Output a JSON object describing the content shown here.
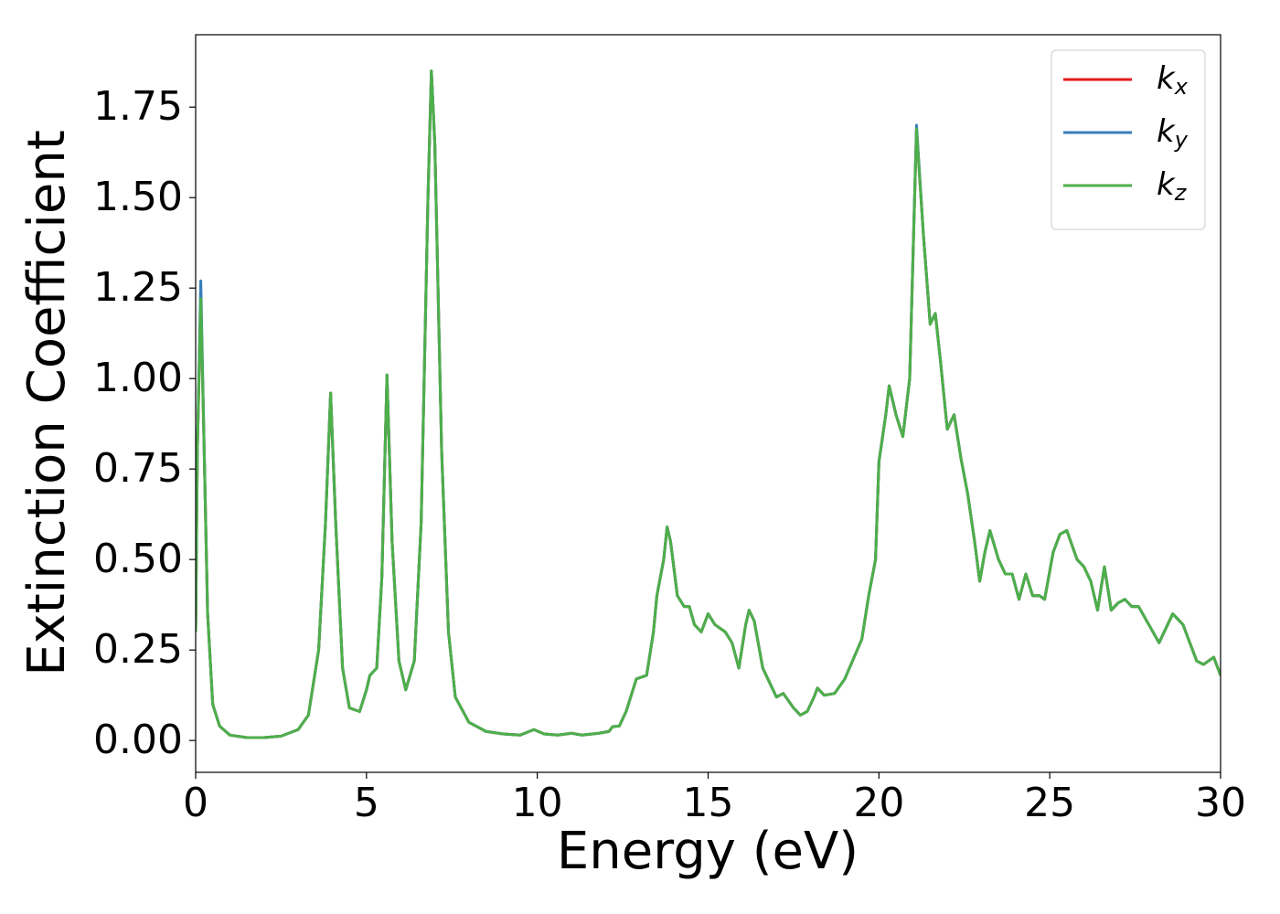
{
  "chart_data": {
    "type": "line",
    "x_label": "Energy (eV)",
    "y_label": "Extinction Coefficient",
    "x": [
      0,
      0.05,
      0.15,
      0.25,
      0.35,
      0.5,
      0.7,
      1,
      1.5,
      2,
      2.5,
      3,
      3.3,
      3.6,
      3.8,
      3.95,
      4.1,
      4.3,
      4.5,
      4.8,
      5,
      5.1,
      5.3,
      5.45,
      5.6,
      5.75,
      5.95,
      6.15,
      6.4,
      6.6,
      6.8,
      6.9,
      7,
      7.2,
      7.4,
      7.6,
      8,
      8.5,
      9,
      9.5,
      9.9,
      10.2,
      10.6,
      11,
      11.3,
      11.8,
      12.1,
      12.2,
      12.4,
      12.6,
      12.9,
      13.2,
      13.4,
      13.5,
      13.7,
      13.8,
      13.9,
      14.1,
      14.3,
      14.45,
      14.6,
      14.8,
      15,
      15.2,
      15.5,
      15.7,
      15.9,
      16.1,
      16.2,
      16.35,
      16.6,
      16.8,
      17,
      17.2,
      17.5,
      17.7,
      17.9,
      18.1,
      18.2,
      18.4,
      18.7,
      19,
      19.5,
      19.7,
      19.9,
      20,
      20.2,
      20.3,
      20.5,
      20.7,
      20.9,
      21.1,
      21.3,
      21.5,
      21.65,
      21.8,
      22,
      22.2,
      22.4,
      22.6,
      22.8,
      22.95,
      23.1,
      23.25,
      23.5,
      23.7,
      23.9,
      24.1,
      24.3,
      24.5,
      24.7,
      24.85,
      25.1,
      25.3,
      25.5,
      25.8,
      26,
      26.2,
      26.4,
      26.6,
      26.8,
      27,
      27.2,
      27.4,
      27.6,
      27.9,
      28.2,
      28.6,
      28.9,
      29.1,
      29.3,
      29.5,
      29.8,
      30
    ],
    "series": [
      {
        "name": "kx",
        "color": "#e41a1c",
        "values": [
          0.3,
          0.8,
          1.22,
          0.8,
          0.35,
          0.1,
          0.04,
          0.015,
          0.008,
          0.008,
          0.012,
          0.03,
          0.07,
          0.25,
          0.6,
          0.96,
          0.6,
          0.2,
          0.09,
          0.08,
          0.14,
          0.18,
          0.2,
          0.45,
          1.01,
          0.55,
          0.22,
          0.14,
          0.22,
          0.6,
          1.5,
          1.85,
          1.65,
          0.8,
          0.3,
          0.12,
          0.05,
          0.025,
          0.018,
          0.015,
          0.03,
          0.018,
          0.015,
          0.02,
          0.015,
          0.02,
          0.025,
          0.038,
          0.04,
          0.08,
          0.17,
          0.18,
          0.3,
          0.4,
          0.5,
          0.59,
          0.55,
          0.4,
          0.37,
          0.37,
          0.32,
          0.3,
          0.35,
          0.32,
          0.3,
          0.27,
          0.2,
          0.32,
          0.36,
          0.33,
          0.2,
          0.16,
          0.12,
          0.13,
          0.09,
          0.07,
          0.08,
          0.12,
          0.145,
          0.125,
          0.13,
          0.17,
          0.28,
          0.4,
          0.5,
          0.77,
          0.9,
          0.98,
          0.9,
          0.84,
          1.0,
          1.69,
          1.4,
          1.15,
          1.18,
          1.05,
          0.86,
          0.9,
          0.78,
          0.68,
          0.55,
          0.44,
          0.52,
          0.58,
          0.5,
          0.46,
          0.46,
          0.39,
          0.46,
          0.4,
          0.4,
          0.39,
          0.52,
          0.57,
          0.58,
          0.5,
          0.48,
          0.44,
          0.36,
          0.48,
          0.36,
          0.38,
          0.39,
          0.37,
          0.37,
          0.32,
          0.27,
          0.35,
          0.32,
          0.27,
          0.22,
          0.21,
          0.23,
          0.18
        ]
      },
      {
        "name": "ky",
        "color": "#377eb8",
        "values": [
          0.3,
          0.8,
          1.27,
          0.8,
          0.35,
          0.1,
          0.04,
          0.015,
          0.008,
          0.008,
          0.012,
          0.03,
          0.07,
          0.25,
          0.6,
          0.96,
          0.6,
          0.2,
          0.09,
          0.08,
          0.14,
          0.18,
          0.2,
          0.45,
          1.01,
          0.55,
          0.22,
          0.14,
          0.22,
          0.6,
          1.5,
          1.85,
          1.65,
          0.8,
          0.3,
          0.12,
          0.05,
          0.025,
          0.018,
          0.015,
          0.03,
          0.018,
          0.015,
          0.02,
          0.015,
          0.02,
          0.025,
          0.038,
          0.04,
          0.08,
          0.17,
          0.18,
          0.3,
          0.4,
          0.5,
          0.59,
          0.55,
          0.4,
          0.37,
          0.37,
          0.32,
          0.3,
          0.35,
          0.32,
          0.3,
          0.27,
          0.2,
          0.32,
          0.36,
          0.33,
          0.2,
          0.16,
          0.12,
          0.13,
          0.09,
          0.07,
          0.08,
          0.12,
          0.145,
          0.125,
          0.13,
          0.17,
          0.28,
          0.4,
          0.5,
          0.77,
          0.9,
          0.98,
          0.9,
          0.84,
          1.0,
          1.7,
          1.4,
          1.15,
          1.18,
          1.05,
          0.86,
          0.9,
          0.78,
          0.68,
          0.55,
          0.44,
          0.52,
          0.58,
          0.5,
          0.46,
          0.46,
          0.39,
          0.46,
          0.4,
          0.4,
          0.39,
          0.52,
          0.57,
          0.58,
          0.5,
          0.48,
          0.44,
          0.36,
          0.48,
          0.36,
          0.38,
          0.39,
          0.37,
          0.37,
          0.32,
          0.27,
          0.35,
          0.32,
          0.27,
          0.22,
          0.21,
          0.23,
          0.18
        ]
      },
      {
        "name": "kz",
        "color": "#4daf4a",
        "values": [
          0.3,
          0.8,
          1.22,
          0.8,
          0.35,
          0.1,
          0.04,
          0.015,
          0.008,
          0.008,
          0.012,
          0.03,
          0.07,
          0.25,
          0.6,
          0.96,
          0.6,
          0.2,
          0.09,
          0.08,
          0.14,
          0.18,
          0.2,
          0.45,
          1.01,
          0.55,
          0.22,
          0.14,
          0.22,
          0.6,
          1.5,
          1.85,
          1.65,
          0.8,
          0.3,
          0.12,
          0.05,
          0.025,
          0.018,
          0.015,
          0.03,
          0.018,
          0.015,
          0.02,
          0.015,
          0.02,
          0.025,
          0.038,
          0.04,
          0.08,
          0.17,
          0.18,
          0.3,
          0.4,
          0.5,
          0.59,
          0.55,
          0.4,
          0.37,
          0.37,
          0.32,
          0.3,
          0.35,
          0.32,
          0.3,
          0.27,
          0.2,
          0.32,
          0.36,
          0.33,
          0.2,
          0.16,
          0.12,
          0.13,
          0.09,
          0.07,
          0.08,
          0.12,
          0.145,
          0.125,
          0.13,
          0.17,
          0.28,
          0.4,
          0.5,
          0.77,
          0.9,
          0.98,
          0.9,
          0.84,
          1.0,
          1.69,
          1.4,
          1.15,
          1.18,
          1.05,
          0.86,
          0.9,
          0.78,
          0.68,
          0.55,
          0.44,
          0.52,
          0.58,
          0.5,
          0.46,
          0.46,
          0.39,
          0.46,
          0.4,
          0.4,
          0.39,
          0.52,
          0.57,
          0.58,
          0.5,
          0.48,
          0.44,
          0.36,
          0.48,
          0.36,
          0.38,
          0.39,
          0.37,
          0.37,
          0.32,
          0.27,
          0.35,
          0.32,
          0.27,
          0.22,
          0.21,
          0.23,
          0.18
        ]
      }
    ],
    "xlim": [
      0,
      30
    ],
    "xticks": [
      0,
      5,
      10,
      15,
      20,
      25,
      30
    ],
    "ylim": [
      -0.088,
      1.95
    ],
    "yticks": [
      {
        "value": 0,
        "label": "0.00"
      },
      {
        "value": 0.25,
        "label": "0.25"
      },
      {
        "value": 0.5,
        "label": "0.50"
      },
      {
        "value": 0.75,
        "label": "0.75"
      },
      {
        "value": 1,
        "label": "1.00"
      },
      {
        "value": 1.25,
        "label": "1.25"
      },
      {
        "value": 1.5,
        "label": "1.50"
      },
      {
        "value": 1.75,
        "label": "1.75"
      }
    ],
    "grid": false,
    "legend": "upper right"
  }
}
